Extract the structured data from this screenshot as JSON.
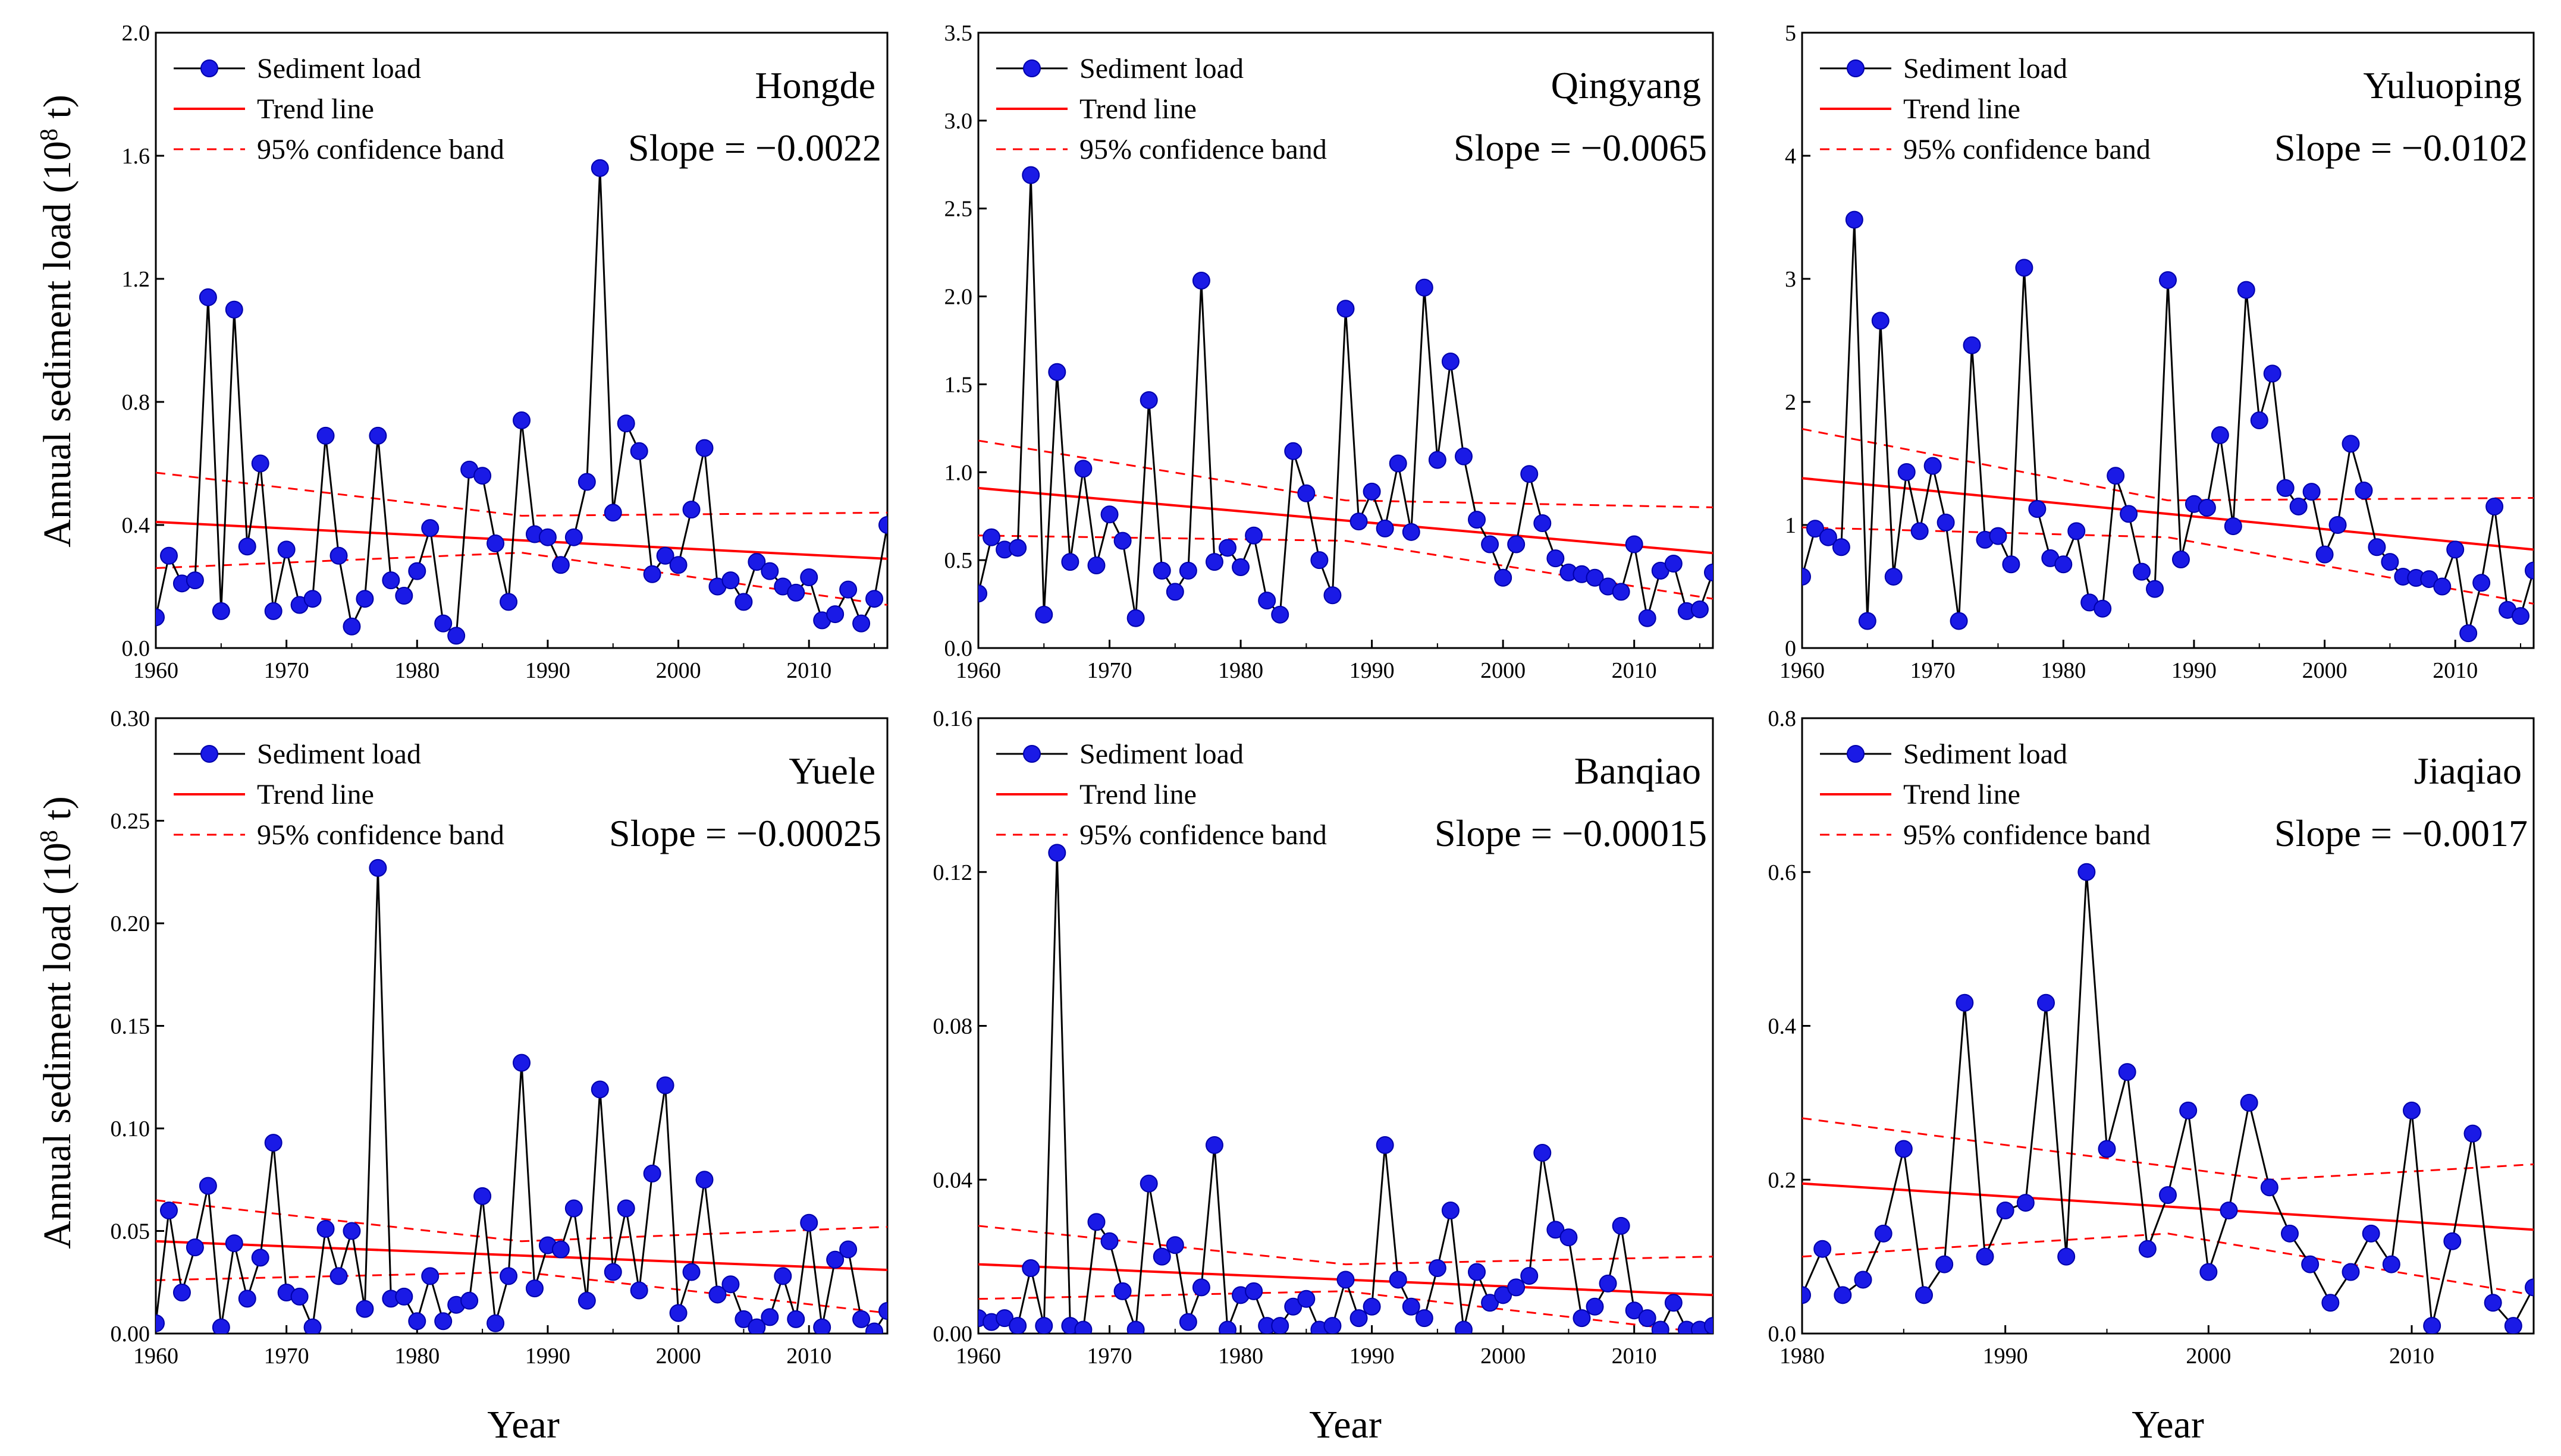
{
  "figure": {
    "ylabel_left": "Annual sediment load (10",
    "ylabel_sup": "8",
    "ylabel_right": " t)",
    "xlabel": "Year"
  },
  "legend": {
    "series": "Sediment load",
    "trend": "Trend line",
    "band": "95% confidence band"
  },
  "colors": {
    "series_line": "#000000",
    "marker": "#1a1ae6",
    "marker_edge": "#0000aa",
    "trend": "#ff0000",
    "band": "#ff0000"
  },
  "chart_data": [
    {
      "type": "line",
      "station": "Hongde",
      "slope_text": "Slope = −0.0022",
      "xlim": [
        1960,
        2016
      ],
      "ylim": [
        0,
        2.0
      ],
      "xticks": [
        1960,
        1970,
        1980,
        1990,
        2000,
        2010
      ],
      "yticks": [
        0.0,
        0.4,
        0.8,
        1.2,
        1.6,
        2.0
      ],
      "ytick_labels": [
        "0.0",
        "0.4",
        "0.8",
        "1.2",
        "1.6",
        "2.0"
      ],
      "x_start": 1960,
      "values": [
        0.1,
        0.3,
        0.21,
        0.22,
        1.14,
        0.12,
        1.1,
        0.33,
        0.6,
        0.12,
        0.32,
        0.14,
        0.16,
        0.69,
        0.3,
        0.07,
        0.16,
        0.69,
        0.22,
        0.17,
        0.25,
        0.39,
        0.08,
        0.04,
        0.58,
        0.56,
        0.34,
        0.15,
        0.74,
        0.37,
        0.36,
        0.27,
        0.36,
        0.54,
        1.56,
        0.44,
        0.73,
        0.64,
        0.24,
        0.3,
        0.27,
        0.45,
        0.65,
        0.2,
        0.22,
        0.15,
        0.28,
        0.25,
        0.2,
        0.18,
        0.23,
        0.09,
        0.11,
        0.19,
        0.08,
        0.16,
        0.4
      ],
      "trend": {
        "x": [
          1960,
          2016
        ],
        "y": [
          0.41,
          0.29
        ]
      },
      "band_upper": {
        "x": [
          1960,
          1988,
          2016
        ],
        "y": [
          0.57,
          0.43,
          0.44
        ]
      },
      "band_lower": {
        "x": [
          1960,
          1988,
          2016
        ],
        "y": [
          0.26,
          0.31,
          0.14
        ]
      }
    },
    {
      "type": "line",
      "station": "Qingyang",
      "slope_text": "Slope = −0.0065",
      "xlim": [
        1960,
        2016
      ],
      "ylim": [
        0,
        3.5
      ],
      "xticks": [
        1960,
        1970,
        1980,
        1990,
        2000,
        2010
      ],
      "yticks": [
        0.0,
        0.5,
        1.0,
        1.5,
        2.0,
        2.5,
        3.0,
        3.5
      ],
      "ytick_labels": [
        "0.0",
        "0.5",
        "1.0",
        "1.5",
        "2.0",
        "2.5",
        "3.0",
        "3.5"
      ],
      "x_start": 1960,
      "values": [
        0.31,
        0.63,
        0.56,
        0.57,
        2.69,
        0.19,
        1.57,
        0.49,
        1.02,
        0.47,
        0.76,
        0.61,
        0.17,
        1.41,
        0.44,
        0.32,
        0.44,
        2.09,
        0.49,
        0.57,
        0.46,
        0.64,
        0.27,
        0.19,
        1.12,
        0.88,
        0.5,
        0.3,
        1.93,
        0.72,
        0.89,
        0.68,
        1.05,
        0.66,
        2.05,
        1.07,
        1.63,
        1.09,
        0.73,
        0.59,
        0.4,
        0.59,
        0.99,
        0.71,
        0.51,
        0.43,
        0.42,
        0.4,
        0.35,
        0.32,
        0.59,
        0.17,
        0.44,
        0.48,
        0.21,
        0.22,
        0.43
      ],
      "trend": {
        "x": [
          1960,
          2016
        ],
        "y": [
          0.91,
          0.54
        ]
      },
      "band_upper": {
        "x": [
          1960,
          1988,
          2016
        ],
        "y": [
          1.18,
          0.84,
          0.8
        ]
      },
      "band_lower": {
        "x": [
          1960,
          1988,
          2016
        ],
        "y": [
          0.64,
          0.61,
          0.28
        ]
      }
    },
    {
      "type": "line",
      "station": "Yuluoping",
      "slope_text": "Slope = −0.0102",
      "xlim": [
        1960,
        2016
      ],
      "ylim": [
        0,
        5
      ],
      "xticks": [
        1960,
        1970,
        1980,
        1990,
        2000,
        2010
      ],
      "yticks": [
        0,
        1,
        2,
        3,
        4,
        5
      ],
      "ytick_labels": [
        "0",
        "1",
        "2",
        "3",
        "4",
        "5"
      ],
      "x_start": 1960,
      "values": [
        0.58,
        0.97,
        0.9,
        0.82,
        3.48,
        0.22,
        2.66,
        0.58,
        1.43,
        0.95,
        1.48,
        1.02,
        0.22,
        2.46,
        0.88,
        0.91,
        0.68,
        3.09,
        1.13,
        0.73,
        0.68,
        0.95,
        0.37,
        0.32,
        1.4,
        1.09,
        0.62,
        0.48,
        2.99,
        0.72,
        1.17,
        1.14,
        1.73,
        0.99,
        2.91,
        1.85,
        2.23,
        1.3,
        1.15,
        1.27,
        0.76,
        1.0,
        1.66,
        1.28,
        0.82,
        0.7,
        0.58,
        0.57,
        0.56,
        0.5,
        0.8,
        0.12,
        0.53,
        1.15,
        0.31,
        0.26,
        0.63
      ],
      "trend": {
        "x": [
          1960,
          2016
        ],
        "y": [
          1.38,
          0.8
        ]
      },
      "band_upper": {
        "x": [
          1960,
          1988,
          2016
        ],
        "y": [
          1.78,
          1.2,
          1.22
        ]
      },
      "band_lower": {
        "x": [
          1960,
          1988,
          2016
        ],
        "y": [
          0.98,
          0.9,
          0.36
        ]
      }
    },
    {
      "type": "line",
      "station": "Yuele",
      "slope_text": "Slope = −0.00025",
      "xlim": [
        1960,
        2016
      ],
      "ylim": [
        0,
        0.3
      ],
      "xticks": [
        1960,
        1970,
        1980,
        1990,
        2000,
        2010
      ],
      "yticks": [
        0.0,
        0.05,
        0.1,
        0.15,
        0.2,
        0.25,
        0.3
      ],
      "ytick_labels": [
        "0.00",
        "0.05",
        "0.10",
        "0.15",
        "0.20",
        "0.25",
        "0.30"
      ],
      "x_start": 1960,
      "values": [
        0.005,
        0.06,
        0.02,
        0.042,
        0.072,
        0.003,
        0.044,
        0.017,
        0.037,
        0.093,
        0.02,
        0.018,
        0.003,
        0.051,
        0.028,
        0.05,
        0.012,
        0.227,
        0.017,
        0.018,
        0.006,
        0.028,
        0.006,
        0.014,
        0.016,
        0.067,
        0.005,
        0.028,
        0.132,
        0.022,
        0.043,
        0.041,
        0.061,
        0.016,
        0.119,
        0.03,
        0.061,
        0.021,
        0.078,
        0.121,
        0.01,
        0.03,
        0.075,
        0.019,
        0.024,
        0.007,
        0.003,
        0.008,
        0.028,
        0.007,
        0.054,
        0.003,
        0.036,
        0.041,
        0.007,
        0.001,
        0.011
      ],
      "trend": {
        "x": [
          1960,
          2016
        ],
        "y": [
          0.045,
          0.031
        ]
      },
      "band_upper": {
        "x": [
          1960,
          1988,
          2016
        ],
        "y": [
          0.065,
          0.045,
          0.052
        ]
      },
      "band_lower": {
        "x": [
          1960,
          1988,
          2016
        ],
        "y": [
          0.026,
          0.03,
          0.01
        ]
      }
    },
    {
      "type": "line",
      "station": "Banqiao",
      "slope_text": "Slope = −0.00015",
      "xlim": [
        1960,
        2016
      ],
      "ylim": [
        0,
        0.16
      ],
      "xticks": [
        1960,
        1970,
        1980,
        1990,
        2000,
        2010
      ],
      "yticks": [
        0.0,
        0.04,
        0.08,
        0.12,
        0.16
      ],
      "ytick_labels": [
        "0.00",
        "0.04",
        "0.08",
        "0.12",
        "0.16"
      ],
      "x_start": 1960,
      "values": [
        0.004,
        0.003,
        0.004,
        0.002,
        0.017,
        0.002,
        0.125,
        0.002,
        0.001,
        0.029,
        0.024,
        0.011,
        0.001,
        0.039,
        0.02,
        0.023,
        0.003,
        0.012,
        0.049,
        0.001,
        0.01,
        0.011,
        0.002,
        0.002,
        0.007,
        0.009,
        0.001,
        0.002,
        0.014,
        0.004,
        0.007,
        0.049,
        0.014,
        0.007,
        0.004,
        0.017,
        0.032,
        0.001,
        0.016,
        0.008,
        0.01,
        0.012,
        0.015,
        0.047,
        0.027,
        0.025,
        0.004,
        0.007,
        0.013,
        0.028,
        0.006,
        0.004,
        0.001,
        0.008,
        0.001,
        0.001,
        0.002
      ],
      "trend": {
        "x": [
          1960,
          2016
        ],
        "y": [
          0.018,
          0.01
        ]
      },
      "band_upper": {
        "x": [
          1960,
          1988,
          2016
        ],
        "y": [
          0.028,
          0.018,
          0.02
        ]
      },
      "band_lower": {
        "x": [
          1960,
          1988,
          2016
        ],
        "y": [
          0.009,
          0.011,
          0.0
        ]
      }
    },
    {
      "type": "line",
      "station": "Jiaqiao",
      "slope_text": "Slope = −0.0017",
      "xlim": [
        1980,
        2016
      ],
      "ylim": [
        0,
        0.8
      ],
      "xticks": [
        1980,
        1990,
        2000,
        2010
      ],
      "yticks": [
        0.0,
        0.2,
        0.4,
        0.6,
        0.8
      ],
      "ytick_labels": [
        "0.0",
        "0.2",
        "0.4",
        "0.6",
        "0.8"
      ],
      "x_start": 1980,
      "values": [
        0.05,
        0.11,
        0.05,
        0.07,
        0.13,
        0.24,
        0.05,
        0.09,
        0.43,
        0.1,
        0.16,
        0.17,
        0.43,
        0.1,
        0.6,
        0.24,
        0.34,
        0.11,
        0.18,
        0.29,
        0.08,
        0.16,
        0.3,
        0.19,
        0.13,
        0.09,
        0.04,
        0.08,
        0.13,
        0.09,
        0.29,
        0.01,
        0.12,
        0.26,
        0.04,
        0.01,
        0.06
      ],
      "trend": {
        "x": [
          1980,
          2016
        ],
        "y": [
          0.195,
          0.135
        ]
      },
      "band_upper": {
        "x": [
          1980,
          2003,
          2016
        ],
        "y": [
          0.28,
          0.2,
          0.22
        ]
      },
      "band_lower": {
        "x": [
          1980,
          1998,
          2016
        ],
        "y": [
          0.1,
          0.13,
          0.05
        ]
      }
    }
  ]
}
